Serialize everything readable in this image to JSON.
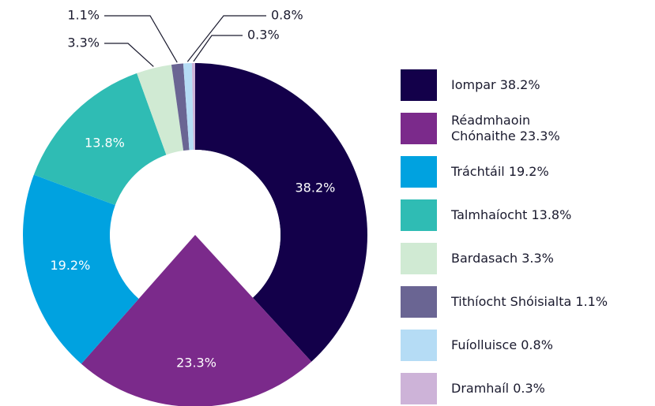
{
  "chart_data": {
    "type": "donut",
    "categories": [
      "Iompar",
      "Réadmhaoin Chónaithe",
      "Tráchtáil",
      "Talmhaíocht",
      "Bardasach",
      "Tithíocht Shóisialta",
      "Fuíolluisce",
      "Dramhaíl"
    ],
    "values": [
      38.2,
      23.3,
      19.2,
      13.8,
      3.3,
      1.1,
      0.8,
      0.3
    ],
    "value_labels": [
      "38.2%",
      "23.3%",
      "19.2%",
      "13.8%",
      "3.3%",
      "1.1%",
      "0.8%",
      "0.3%"
    ],
    "colors": [
      "#13004a",
      "#7b2a8b",
      "#00a2e0",
      "#2fbcb4",
      "#d0ead3",
      "#6a6593",
      "#b5dcf5",
      "#cdb3d8"
    ],
    "legend": "right"
  }
}
